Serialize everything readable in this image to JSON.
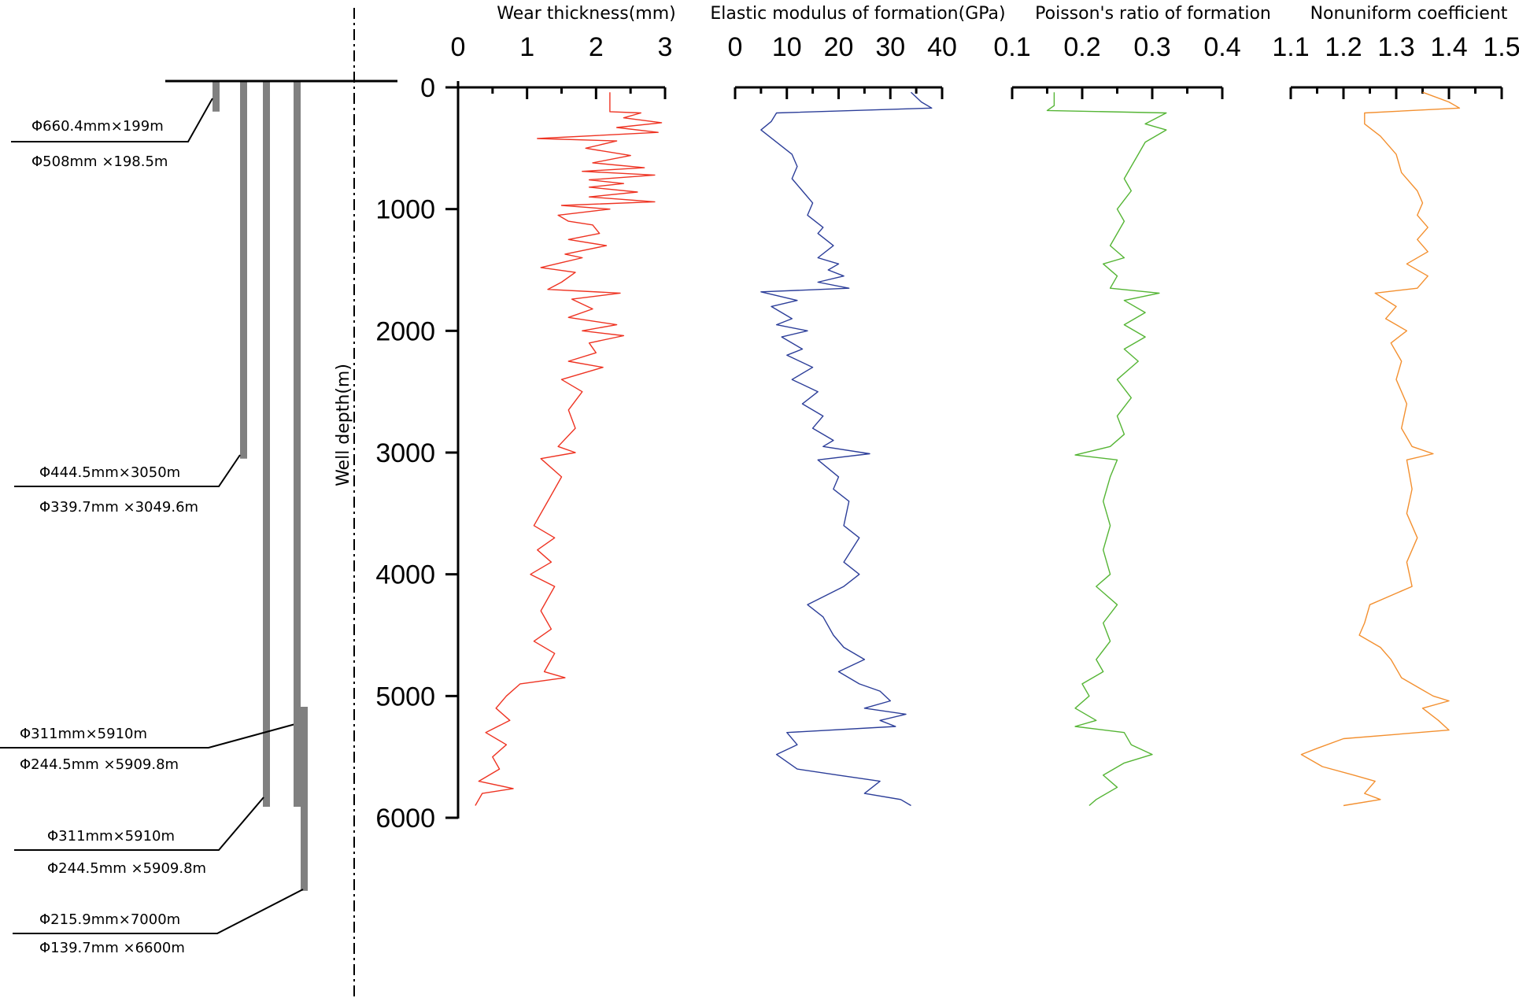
{
  "figure": {
    "depth_label": "Well depth(m)"
  },
  "casing": [
    {
      "top": 0,
      "bottom": 199,
      "lines": [
        "Φ660.4mm×199m",
        "Φ508mm ×198.5m"
      ]
    },
    {
      "top": 0,
      "bottom": 3050,
      "lines": [
        "Φ444.5mm×3050m",
        "Φ339.7mm ×3049.6m"
      ]
    },
    {
      "top": 0,
      "bottom": 5910,
      "lines": [
        "Φ311mm×5910m",
        "Φ244.5mm ×5909.8m"
      ]
    },
    {
      "top": 0,
      "bottom": 5910,
      "lines": [
        "Φ311mm×5910m",
        "Φ244.5mm ×5909.8m"
      ]
    },
    {
      "top": 5140,
      "bottom": 6600,
      "lines": [
        "Φ215.9mm×7000m",
        "Φ139.7mm ×6600m"
      ]
    }
  ],
  "chart_data": {
    "type": "line",
    "grid": false,
    "y_axis": {
      "label": "Well depth(m)",
      "range": [
        0,
        6000
      ],
      "ticks": [
        0,
        1000,
        2000,
        3000,
        4000,
        5000,
        6000
      ],
      "inverted": true
    },
    "tracks": [
      {
        "name": "Wear thickness(mm)",
        "color": "#ee3322",
        "range": [
          0,
          3
        ],
        "ticks": [
          0,
          1,
          2,
          3
        ],
        "tick_labels": [
          "0",
          "1",
          "2",
          "3"
        ],
        "points": [
          [
            2.2,
            40
          ],
          [
            2.2,
            200
          ],
          [
            2.65,
            210
          ],
          [
            2.4,
            250
          ],
          [
            2.95,
            290
          ],
          [
            2.3,
            330
          ],
          [
            2.9,
            370
          ],
          [
            1.15,
            420
          ],
          [
            2.3,
            440
          ],
          [
            1.85,
            500
          ],
          [
            2.5,
            560
          ],
          [
            1.95,
            620
          ],
          [
            2.7,
            660
          ],
          [
            1.8,
            690
          ],
          [
            2.85,
            720
          ],
          [
            1.9,
            760
          ],
          [
            2.4,
            790
          ],
          [
            1.9,
            820
          ],
          [
            2.6,
            860
          ],
          [
            1.9,
            900
          ],
          [
            2.85,
            940
          ],
          [
            1.5,
            970
          ],
          [
            2.2,
            1000
          ],
          [
            1.45,
            1050
          ],
          [
            1.6,
            1100
          ],
          [
            1.95,
            1130
          ],
          [
            2.05,
            1200
          ],
          [
            1.6,
            1250
          ],
          [
            2.15,
            1300
          ],
          [
            1.55,
            1370
          ],
          [
            1.8,
            1400
          ],
          [
            1.5,
            1440
          ],
          [
            1.2,
            1480
          ],
          [
            1.7,
            1520
          ],
          [
            1.5,
            1600
          ],
          [
            1.3,
            1660
          ],
          [
            2.35,
            1690
          ],
          [
            1.65,
            1740
          ],
          [
            1.95,
            1820
          ],
          [
            1.6,
            1890
          ],
          [
            2.3,
            1950
          ],
          [
            1.8,
            2000
          ],
          [
            2.4,
            2040
          ],
          [
            1.9,
            2100
          ],
          [
            2.0,
            2180
          ],
          [
            1.6,
            2250
          ],
          [
            2.1,
            2300
          ],
          [
            1.5,
            2400
          ],
          [
            1.8,
            2500
          ],
          [
            1.6,
            2650
          ],
          [
            1.7,
            2800
          ],
          [
            1.45,
            2950
          ],
          [
            1.7,
            3000
          ],
          [
            1.2,
            3050
          ],
          [
            1.5,
            3200
          ],
          [
            1.3,
            3400
          ],
          [
            1.1,
            3600
          ],
          [
            1.4,
            3700
          ],
          [
            1.15,
            3800
          ],
          [
            1.35,
            3900
          ],
          [
            1.05,
            4000
          ],
          [
            1.4,
            4100
          ],
          [
            1.2,
            4300
          ],
          [
            1.35,
            4450
          ],
          [
            1.1,
            4550
          ],
          [
            1.4,
            4650
          ],
          [
            1.25,
            4800
          ],
          [
            1.55,
            4850
          ],
          [
            0.9,
            4900
          ],
          [
            0.7,
            5000
          ],
          [
            0.55,
            5100
          ],
          [
            0.75,
            5200
          ],
          [
            0.4,
            5300
          ],
          [
            0.7,
            5400
          ],
          [
            0.5,
            5500
          ],
          [
            0.6,
            5600
          ],
          [
            0.3,
            5700
          ],
          [
            0.8,
            5760
          ],
          [
            0.35,
            5800
          ],
          [
            0.25,
            5900
          ]
        ]
      },
      {
        "name": "Elastic modulus of formation(GPa)",
        "color": "#2c3e99",
        "range": [
          0,
          40
        ],
        "ticks": [
          0,
          10,
          20,
          30,
          40
        ],
        "tick_labels": [
          "0",
          "10",
          "20",
          "30",
          "40"
        ],
        "points": [
          [
            34,
            40
          ],
          [
            36,
            120
          ],
          [
            38,
            170
          ],
          [
            8,
            210
          ],
          [
            7,
            280
          ],
          [
            5,
            350
          ],
          [
            8,
            450
          ],
          [
            11,
            550
          ],
          [
            12,
            650
          ],
          [
            11,
            750
          ],
          [
            13,
            850
          ],
          [
            15,
            950
          ],
          [
            14,
            1050
          ],
          [
            17,
            1150
          ],
          [
            16,
            1200
          ],
          [
            19,
            1300
          ],
          [
            16,
            1400
          ],
          [
            20,
            1450
          ],
          [
            18,
            1500
          ],
          [
            21,
            1550
          ],
          [
            16,
            1600
          ],
          [
            22,
            1650
          ],
          [
            5,
            1680
          ],
          [
            12,
            1750
          ],
          [
            7,
            1800
          ],
          [
            11,
            1900
          ],
          [
            8,
            1950
          ],
          [
            14,
            2000
          ],
          [
            9,
            2050
          ],
          [
            13,
            2150
          ],
          [
            10,
            2200
          ],
          [
            15,
            2300
          ],
          [
            11,
            2400
          ],
          [
            16,
            2500
          ],
          [
            13,
            2600
          ],
          [
            17,
            2700
          ],
          [
            15,
            2800
          ],
          [
            19,
            2900
          ],
          [
            17,
            2950
          ],
          [
            26,
            3010
          ],
          [
            16,
            3060
          ],
          [
            20,
            3200
          ],
          [
            19,
            3300
          ],
          [
            22,
            3400
          ],
          [
            21,
            3600
          ],
          [
            24,
            3700
          ],
          [
            21,
            3900
          ],
          [
            24,
            4000
          ],
          [
            21,
            4100
          ],
          [
            14,
            4250
          ],
          [
            17,
            4350
          ],
          [
            19,
            4500
          ],
          [
            21,
            4600
          ],
          [
            25,
            4700
          ],
          [
            20,
            4800
          ],
          [
            24,
            4900
          ],
          [
            28,
            4960
          ],
          [
            30,
            5040
          ],
          [
            25,
            5100
          ],
          [
            33,
            5150
          ],
          [
            28,
            5200
          ],
          [
            31,
            5250
          ],
          [
            10,
            5300
          ],
          [
            12,
            5400
          ],
          [
            8,
            5480
          ],
          [
            12,
            5600
          ],
          [
            20,
            5650
          ],
          [
            28,
            5700
          ],
          [
            25,
            5800
          ],
          [
            32,
            5850
          ],
          [
            34,
            5900
          ]
        ]
      },
      {
        "name": "Poisson's ratio of formation",
        "color": "#55b535",
        "range": [
          0.1,
          0.4
        ],
        "ticks": [
          0.1,
          0.2,
          0.3,
          0.4
        ],
        "tick_labels": [
          "0.1",
          "0.2",
          "0.3",
          "0.4"
        ],
        "points": [
          [
            0.16,
            40
          ],
          [
            0.16,
            150
          ],
          [
            0.15,
            190
          ],
          [
            0.32,
            210
          ],
          [
            0.29,
            300
          ],
          [
            0.32,
            350
          ],
          [
            0.29,
            450
          ],
          [
            0.28,
            550
          ],
          [
            0.27,
            650
          ],
          [
            0.26,
            750
          ],
          [
            0.27,
            850
          ],
          [
            0.25,
            1000
          ],
          [
            0.26,
            1100
          ],
          [
            0.24,
            1300
          ],
          [
            0.26,
            1400
          ],
          [
            0.23,
            1450
          ],
          [
            0.25,
            1550
          ],
          [
            0.24,
            1650
          ],
          [
            0.31,
            1690
          ],
          [
            0.26,
            1750
          ],
          [
            0.29,
            1850
          ],
          [
            0.26,
            1950
          ],
          [
            0.29,
            2050
          ],
          [
            0.26,
            2150
          ],
          [
            0.28,
            2250
          ],
          [
            0.25,
            2400
          ],
          [
            0.27,
            2550
          ],
          [
            0.25,
            2700
          ],
          [
            0.26,
            2850
          ],
          [
            0.24,
            2950
          ],
          [
            0.19,
            3020
          ],
          [
            0.25,
            3060
          ],
          [
            0.24,
            3200
          ],
          [
            0.23,
            3400
          ],
          [
            0.24,
            3600
          ],
          [
            0.23,
            3800
          ],
          [
            0.24,
            4000
          ],
          [
            0.22,
            4100
          ],
          [
            0.25,
            4250
          ],
          [
            0.23,
            4400
          ],
          [
            0.24,
            4550
          ],
          [
            0.22,
            4700
          ],
          [
            0.23,
            4800
          ],
          [
            0.2,
            4900
          ],
          [
            0.21,
            5000
          ],
          [
            0.19,
            5100
          ],
          [
            0.22,
            5200
          ],
          [
            0.19,
            5250
          ],
          [
            0.26,
            5300
          ],
          [
            0.27,
            5400
          ],
          [
            0.3,
            5480
          ],
          [
            0.26,
            5550
          ],
          [
            0.23,
            5650
          ],
          [
            0.25,
            5750
          ],
          [
            0.22,
            5850
          ],
          [
            0.21,
            5900
          ]
        ]
      },
      {
        "name": "Nonuniform coefficient",
        "color": "#f39030",
        "range": [
          1.1,
          1.5
        ],
        "ticks": [
          1.1,
          1.2,
          1.3,
          1.4,
          1.5
        ],
        "tick_labels": [
          "1.1",
          "1.2",
          "1.3",
          "1.4",
          "1.5"
        ],
        "points": [
          [
            1.35,
            40
          ],
          [
            1.4,
            120
          ],
          [
            1.42,
            170
          ],
          [
            1.24,
            210
          ],
          [
            1.24,
            300
          ],
          [
            1.27,
            400
          ],
          [
            1.3,
            550
          ],
          [
            1.31,
            700
          ],
          [
            1.34,
            850
          ],
          [
            1.35,
            950
          ],
          [
            1.34,
            1050
          ],
          [
            1.36,
            1150
          ],
          [
            1.34,
            1250
          ],
          [
            1.36,
            1350
          ],
          [
            1.32,
            1450
          ],
          [
            1.36,
            1550
          ],
          [
            1.34,
            1650
          ],
          [
            1.26,
            1690
          ],
          [
            1.3,
            1800
          ],
          [
            1.28,
            1900
          ],
          [
            1.32,
            2000
          ],
          [
            1.29,
            2100
          ],
          [
            1.31,
            2250
          ],
          [
            1.3,
            2400
          ],
          [
            1.32,
            2600
          ],
          [
            1.31,
            2800
          ],
          [
            1.33,
            2950
          ],
          [
            1.37,
            3010
          ],
          [
            1.32,
            3060
          ],
          [
            1.33,
            3300
          ],
          [
            1.32,
            3500
          ],
          [
            1.34,
            3700
          ],
          [
            1.32,
            3900
          ],
          [
            1.33,
            4100
          ],
          [
            1.25,
            4250
          ],
          [
            1.24,
            4400
          ],
          [
            1.23,
            4500
          ],
          [
            1.27,
            4600
          ],
          [
            1.29,
            4700
          ],
          [
            1.31,
            4850
          ],
          [
            1.35,
            4950
          ],
          [
            1.37,
            5000
          ],
          [
            1.4,
            5040
          ],
          [
            1.35,
            5100
          ],
          [
            1.38,
            5200
          ],
          [
            1.4,
            5280
          ],
          [
            1.2,
            5350
          ],
          [
            1.15,
            5430
          ],
          [
            1.12,
            5480
          ],
          [
            1.16,
            5580
          ],
          [
            1.22,
            5650
          ],
          [
            1.26,
            5700
          ],
          [
            1.24,
            5800
          ],
          [
            1.27,
            5850
          ],
          [
            1.2,
            5900
          ]
        ]
      }
    ]
  }
}
